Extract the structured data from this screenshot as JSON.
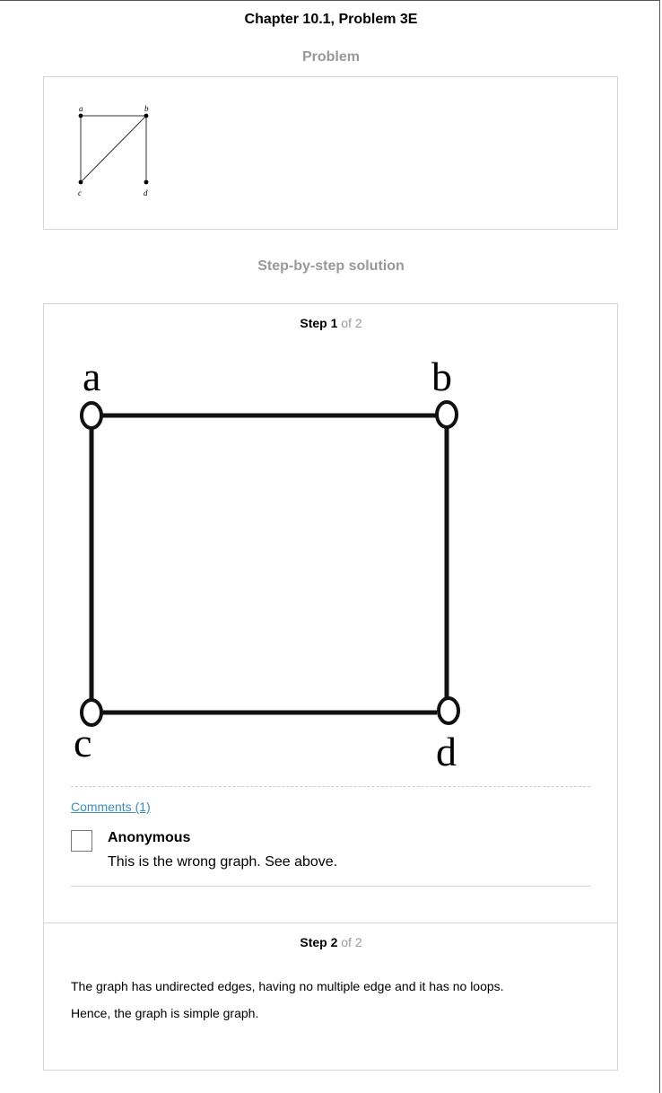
{
  "header": {
    "chapter_title": "Chapter 10.1, Problem 3E"
  },
  "problem": {
    "heading": "Problem",
    "graph_labels": {
      "a": "a",
      "b": "b",
      "c": "c",
      "d": "d"
    }
  },
  "solution": {
    "heading": "Step-by-step solution",
    "steps": [
      {
        "label": "Step 1",
        "of_text": "of 2",
        "graph_labels": {
          "a": "a",
          "b": "b",
          "c": "c",
          "d": "d"
        },
        "comments": {
          "link_label": "Comments (1)",
          "items": [
            {
              "author": "Anonymous",
              "text": "This is the wrong graph. See above."
            }
          ]
        }
      },
      {
        "label": "Step 2",
        "of_text": "of 2",
        "lines": [
          "The graph has undirected edges, having no multiple edge and it has no loops.",
          "Hence, the graph is simple graph."
        ]
      }
    ]
  }
}
